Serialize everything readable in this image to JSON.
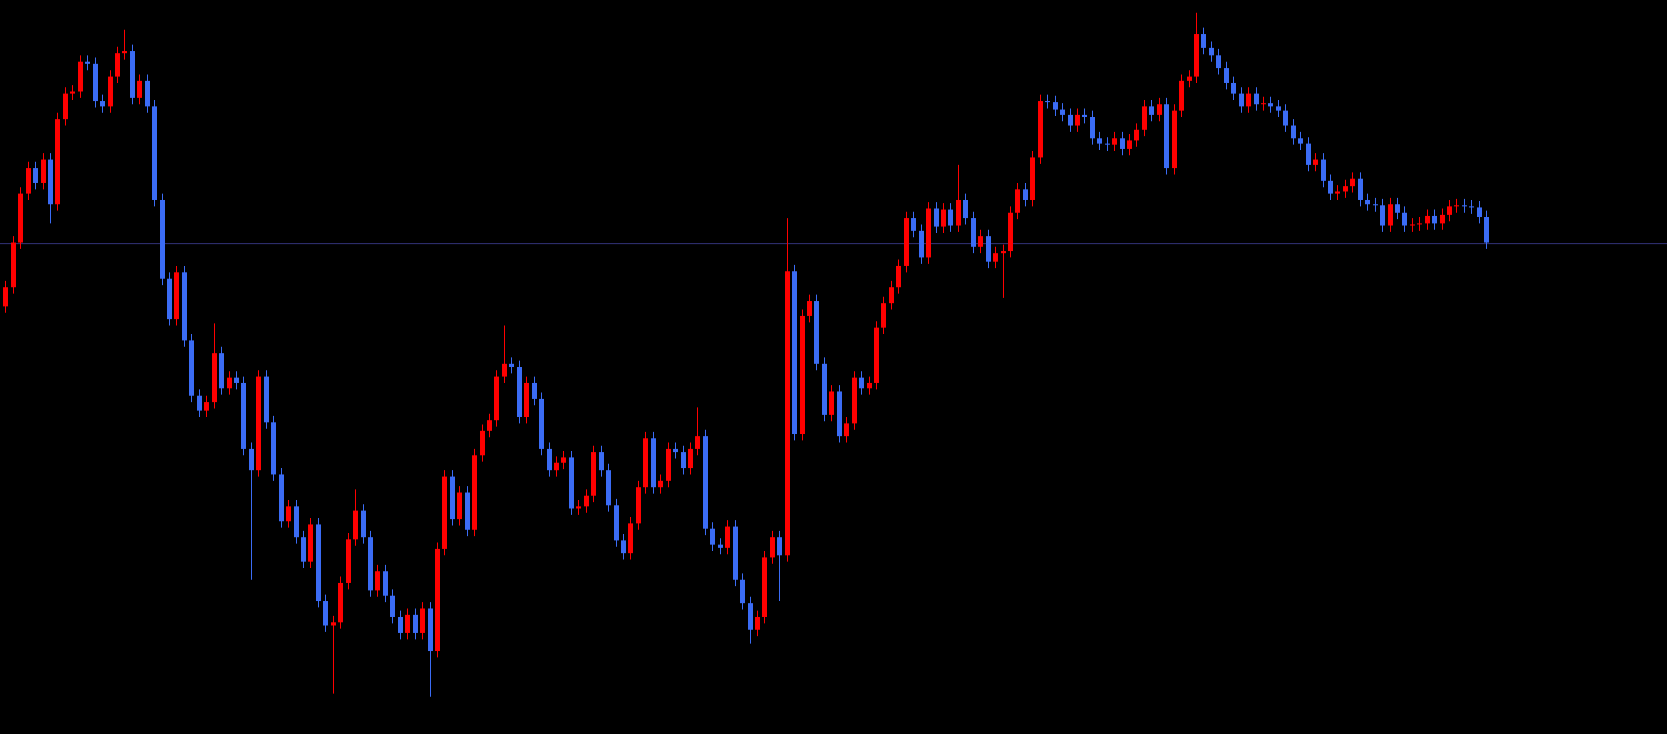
{
  "chart_data": {
    "type": "candlestick",
    "open": [
      402,
      420,
      462,
      508,
      532,
      518,
      540,
      498,
      578,
      602,
      604,
      632,
      630,
      595,
      590,
      618,
      640,
      642,
      598,
      614,
      590,
      502,
      428,
      390,
      434,
      370,
      318,
      304,
      312,
      358,
      325,
      335,
      330,
      268,
      248,
      336,
      293,
      244,
      200,
      214,
      185,
      162,
      197,
      125,
      102,
      105,
      142,
      183,
      210,
      185,
      135,
      153,
      130,
      110,
      95,
      112,
      95,
      118,
      78,
      174,
      242,
      202,
      227,
      192,
      262,
      285,
      295,
      336,
      348,
      345,
      298,
      330,
      315,
      268,
      248,
      255,
      260,
      212,
      214,
      224,
      265,
      248,
      215,
      182,
      170,
      198,
      232,
      278,
      232,
      238,
      268,
      265,
      250,
      268,
      280,
      193,
      178,
      175,
      195,
      145,
      123,
      98,
      110,
      166,
      185,
      168,
      435,
      282,
      393,
      407,
      348,
      300,
      322,
      280,
      292,
      335,
      325,
      330,
      382,
      405,
      420,
      440,
      485,
      473,
      448,
      494,
      477,
      493,
      478,
      502,
      485,
      458,
      468,
      444,
      452,
      454,
      490,
      512,
      502,
      542,
      595,
      594,
      587,
      582,
      572,
      582,
      580,
      560,
      555,
      554,
      560,
      550,
      558,
      568,
      590,
      582,
      592,
      532,
      586,
      614,
      618,
      658,
      645,
      638,
      626,
      612,
      602,
      590,
      602,
      592,
      593,
      590,
      586,
      572,
      560,
      555,
      535,
      540,
      520,
      508,
      510,
      515,
      522,
      502,
      498,
      497,
      478,
      498,
      490,
      478,
      479,
      480,
      487,
      480,
      488,
      496,
      497,
      496,
      495,
      486
    ],
    "high": [
      426,
      468,
      514,
      538,
      538,
      546,
      546,
      584,
      608,
      610,
      638,
      638,
      636,
      601,
      624,
      646,
      662,
      648,
      620,
      620,
      596,
      508,
      434,
      440,
      440,
      376,
      324,
      318,
      386,
      364,
      341,
      341,
      336,
      274,
      342,
      342,
      299,
      250,
      220,
      220,
      191,
      203,
      203,
      131,
      111,
      148,
      189,
      230,
      216,
      191,
      159,
      159,
      136,
      116,
      118,
      118,
      124,
      124,
      180,
      248,
      248,
      233,
      233,
      268,
      291,
      301,
      342,
      384,
      354,
      351,
      336,
      336,
      321,
      274,
      261,
      266,
      266,
      220,
      230,
      271,
      271,
      254,
      221,
      188,
      204,
      238,
      284,
      284,
      244,
      274,
      274,
      271,
      274,
      307,
      286,
      199,
      184,
      201,
      201,
      151,
      129,
      116,
      172,
      191,
      191,
      485,
      441,
      399,
      413,
      413,
      354,
      328,
      328,
      298,
      341,
      341,
      336,
      388,
      411,
      426,
      446,
      491,
      491,
      479,
      500,
      500,
      499,
      499,
      535,
      508,
      491,
      474,
      474,
      458,
      460,
      496,
      518,
      518,
      548,
      601,
      601,
      600,
      593,
      588,
      588,
      588,
      586,
      566,
      561,
      566,
      566,
      564,
      574,
      596,
      596,
      598,
      598,
      592,
      620,
      624,
      678,
      664,
      651,
      644,
      632,
      618,
      608,
      608,
      608,
      599,
      599,
      596,
      592,
      578,
      566,
      561,
      546,
      546,
      526,
      516,
      521,
      528,
      528,
      508,
      504,
      503,
      504,
      504,
      496,
      485,
      486,
      493,
      493,
      494,
      502,
      503,
      503,
      502,
      501,
      492
    ],
    "low": [
      396,
      414,
      456,
      502,
      512,
      512,
      480,
      492,
      572,
      596,
      598,
      624,
      589,
      584,
      584,
      612,
      634,
      592,
      592,
      584,
      496,
      422,
      384,
      384,
      364,
      312,
      298,
      298,
      306,
      319,
      319,
      324,
      262,
      145,
      242,
      287,
      238,
      194,
      194,
      179,
      156,
      156,
      119,
      96,
      38,
      99,
      136,
      177,
      179,
      129,
      129,
      124,
      104,
      89,
      89,
      89,
      89,
      35,
      72,
      168,
      196,
      196,
      186,
      186,
      256,
      279,
      289,
      330,
      339,
      292,
      292,
      309,
      262,
      242,
      242,
      249,
      206,
      206,
      208,
      218,
      242,
      209,
      176,
      164,
      164,
      192,
      226,
      226,
      226,
      232,
      259,
      244,
      244,
      262,
      187,
      172,
      169,
      169,
      139,
      117,
      85,
      92,
      104,
      160,
      125,
      162,
      276,
      276,
      387,
      342,
      294,
      294,
      274,
      274,
      286,
      319,
      319,
      324,
      376,
      399,
      414,
      434,
      467,
      442,
      442,
      471,
      471,
      472,
      472,
      479,
      452,
      452,
      438,
      438,
      410,
      448,
      484,
      496,
      496,
      536,
      588,
      581,
      576,
      566,
      566,
      574,
      554,
      549,
      548,
      548,
      544,
      544,
      552,
      562,
      576,
      576,
      526,
      526,
      580,
      608,
      612,
      639,
      632,
      620,
      606,
      596,
      584,
      584,
      586,
      586,
      584,
      580,
      566,
      554,
      549,
      529,
      529,
      514,
      502,
      502,
      504,
      509,
      496,
      492,
      491,
      472,
      472,
      484,
      472,
      472,
      473,
      474,
      474,
      474,
      482,
      490,
      490,
      489,
      480,
      456
    ],
    "close": [
      420,
      462,
      508,
      532,
      518,
      540,
      498,
      578,
      602,
      604,
      632,
      630,
      595,
      590,
      618,
      640,
      642,
      598,
      614,
      590,
      502,
      428,
      390,
      434,
      370,
      318,
      304,
      312,
      358,
      325,
      335,
      330,
      268,
      248,
      336,
      293,
      244,
      200,
      214,
      185,
      162,
      197,
      125,
      102,
      105,
      142,
      183,
      210,
      185,
      135,
      153,
      130,
      110,
      95,
      112,
      95,
      118,
      78,
      174,
      242,
      202,
      227,
      192,
      262,
      285,
      295,
      336,
      348,
      345,
      298,
      330,
      315,
      268,
      248,
      255,
      260,
      212,
      214,
      224,
      265,
      248,
      215,
      182,
      170,
      198,
      232,
      278,
      232,
      238,
      268,
      265,
      250,
      268,
      280,
      193,
      178,
      175,
      195,
      145,
      123,
      98,
      110,
      166,
      185,
      168,
      435,
      282,
      393,
      407,
      348,
      300,
      322,
      280,
      292,
      335,
      325,
      330,
      382,
      405,
      420,
      440,
      485,
      473,
      448,
      494,
      477,
      493,
      478,
      502,
      485,
      458,
      468,
      444,
      452,
      454,
      490,
      512,
      502,
      542,
      595,
      594,
      587,
      582,
      572,
      582,
      580,
      560,
      555,
      554,
      560,
      550,
      558,
      568,
      590,
      582,
      592,
      532,
      586,
      614,
      618,
      658,
      645,
      638,
      626,
      612,
      602,
      590,
      602,
      592,
      593,
      590,
      586,
      572,
      560,
      555,
      535,
      540,
      520,
      508,
      510,
      515,
      522,
      502,
      498,
      497,
      478,
      498,
      490,
      478,
      479,
      480,
      487,
      480,
      488,
      496,
      497,
      496,
      495,
      486,
      462
    ],
    "ylim": [
      0,
      690
    ],
    "up_color": "#ff0000",
    "down_color": "#3b6cf5",
    "level": 461,
    "level_color": "#33337a",
    "background": "#000000"
  }
}
